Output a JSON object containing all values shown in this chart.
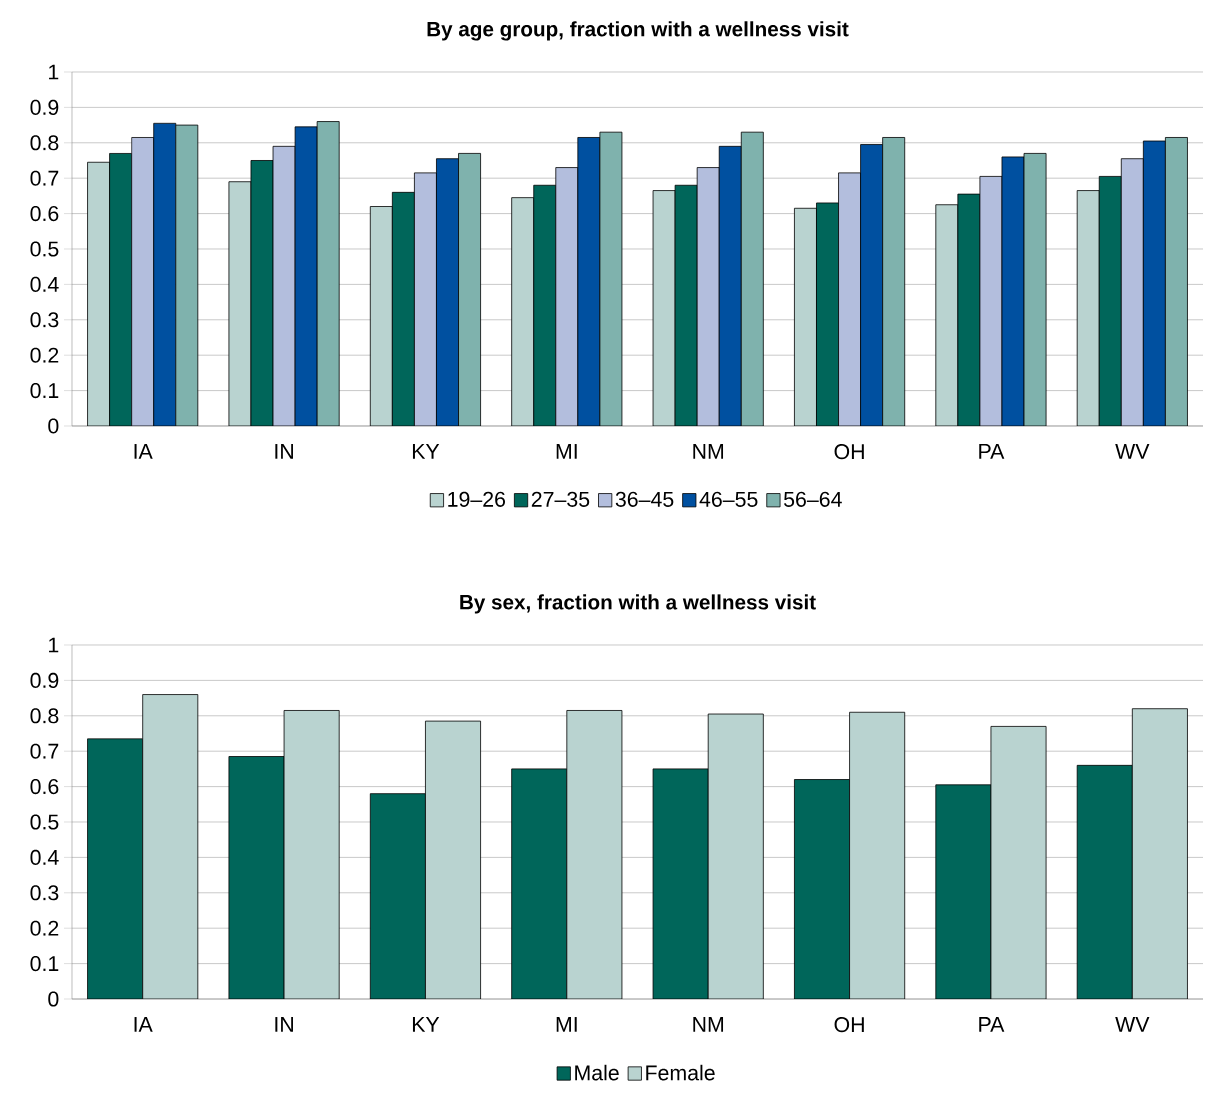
{
  "chart_data": [
    {
      "type": "bar",
      "title": "**By age group, fraction with a wellness visit**",
      "categories": [
        "IA",
        "IN",
        "KY",
        "MI",
        "NM",
        "OH",
        "PA",
        "WV"
      ],
      "series": [
        {
          "name": "19–26",
          "color": "#b9d3d0",
          "values": [
            0.745,
            0.69,
            0.62,
            0.645,
            0.665,
            0.615,
            0.625,
            0.665
          ]
        },
        {
          "name": "27–35",
          "color": "#00665a",
          "values": [
            0.77,
            0.75,
            0.66,
            0.68,
            0.68,
            0.63,
            0.655,
            0.705
          ]
        },
        {
          "name": "36–45",
          "color": "#b3bedd",
          "values": [
            0.815,
            0.79,
            0.715,
            0.73,
            0.73,
            0.715,
            0.705,
            0.755
          ]
        },
        {
          "name": "46–55",
          "color": "#0050a0",
          "values": [
            0.855,
            0.845,
            0.755,
            0.815,
            0.79,
            0.795,
            0.76,
            0.805
          ]
        },
        {
          "name": "56–64",
          "color": "#7fb2ad",
          "values": [
            0.85,
            0.86,
            0.77,
            0.83,
            0.83,
            0.815,
            0.77,
            0.815
          ]
        }
      ],
      "ylim": [
        0,
        1
      ],
      "yticks": [
        0,
        0.1,
        0.2,
        0.3,
        0.4,
        0.5,
        0.6,
        0.7,
        0.8,
        0.9,
        1
      ],
      "grid": "y",
      "legend": "bottom"
    },
    {
      "type": "bar",
      "title": "**By sex, fraction with a wellness visit**",
      "categories": [
        "IA",
        "IN",
        "KY",
        "MI",
        "NM",
        "OH",
        "PA",
        "WV"
      ],
      "series": [
        {
          "name": "Male",
          "color": "#00665a",
          "values": [
            0.735,
            0.685,
            0.58,
            0.65,
            0.65,
            0.62,
            0.605,
            0.66
          ]
        },
        {
          "name": "Female",
          "color": "#b9d3d0",
          "values": [
            0.86,
            0.815,
            0.785,
            0.815,
            0.805,
            0.81,
            0.77,
            0.82
          ]
        }
      ],
      "ylim": [
        0,
        1
      ],
      "yticks": [
        0,
        0.1,
        0.2,
        0.3,
        0.4,
        0.5,
        0.6,
        0.7,
        0.8,
        0.9,
        1
      ],
      "grid": "y",
      "legend": "bottom"
    }
  ]
}
